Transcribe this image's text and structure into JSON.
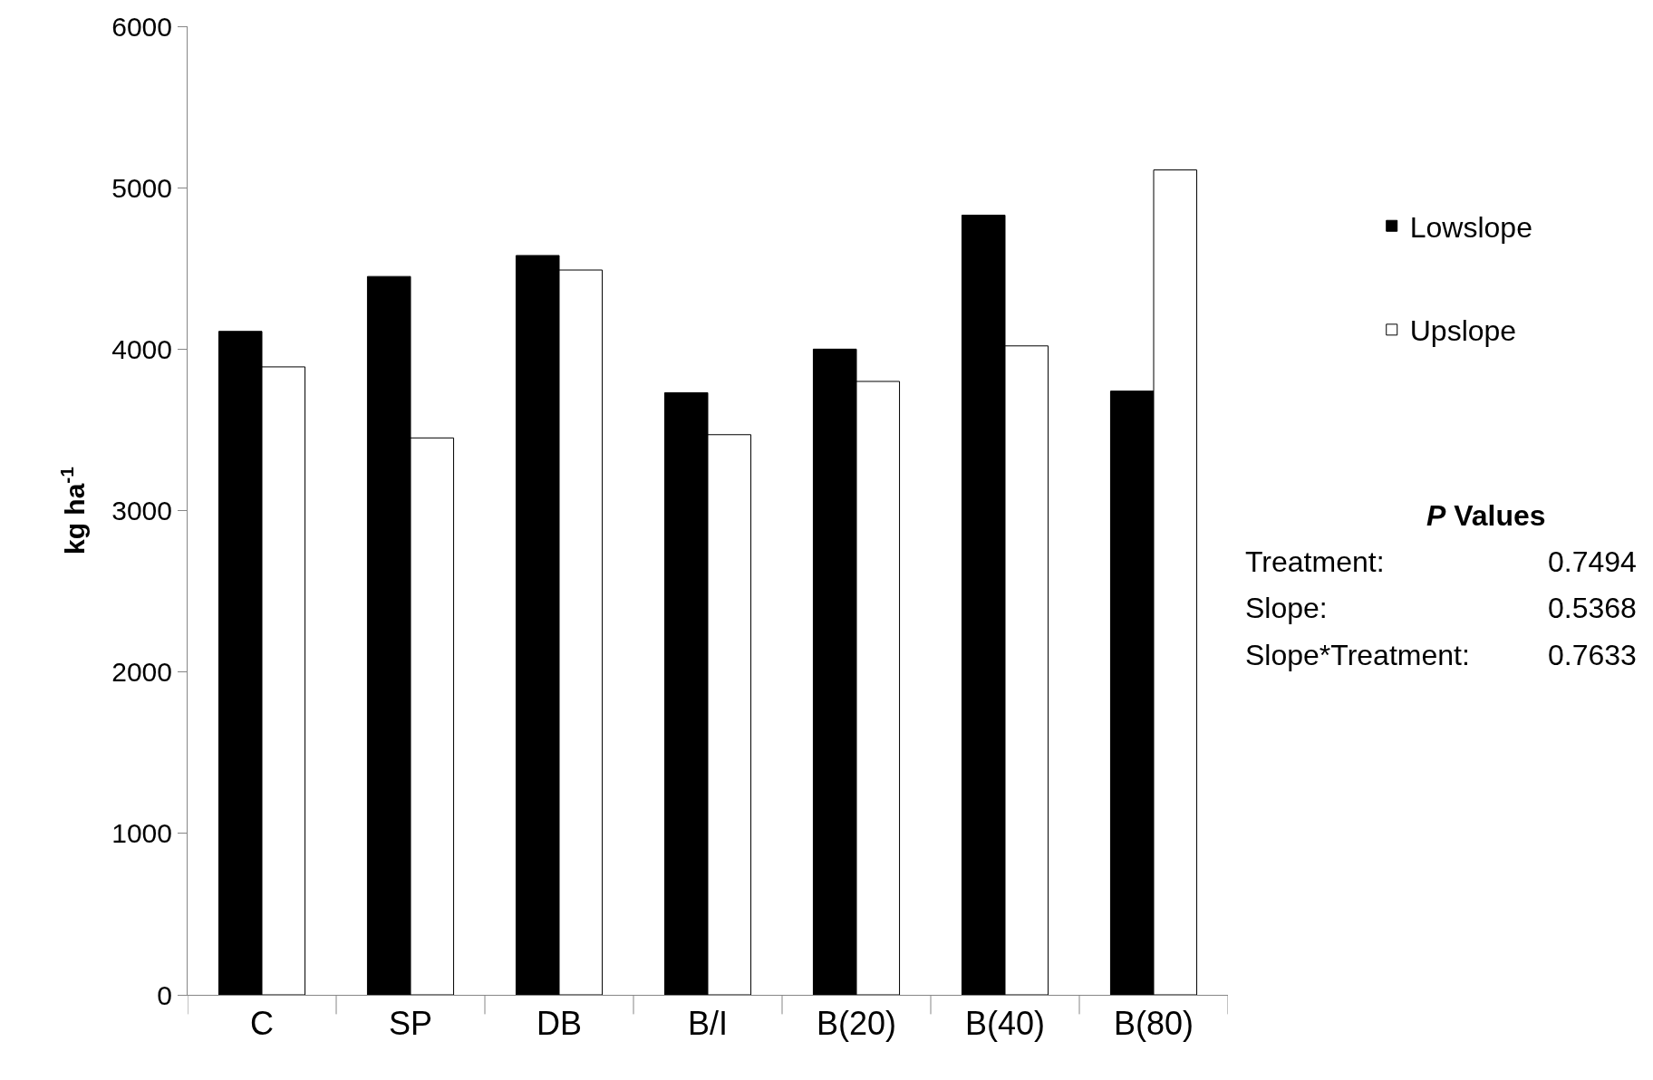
{
  "chart_data": {
    "type": "bar",
    "ylabel": "kg ha$^{-1}$",
    "categories": [
      "C",
      "SP",
      "DB",
      "B/I",
      "B(20)",
      "B(40)",
      "B(80)"
    ],
    "series": [
      {
        "name": "Lowslope",
        "color": "#000000",
        "values": [
          4110,
          4450,
          4580,
          3730,
          4000,
          4830,
          3740
        ]
      },
      {
        "name": "Upslope",
        "color": "#ffffff",
        "values": [
          3890,
          3450,
          4490,
          3470,
          3800,
          4020,
          5110
        ]
      }
    ],
    "ylim": [
      0,
      6000
    ],
    "yticks": [
      0,
      1000,
      2000,
      3000,
      4000,
      5000,
      6000
    ],
    "legend": "right",
    "annotations": [
      "P Values",
      "Treatment:",
      "0.7494",
      "Slope:",
      "0.5368",
      "Slope*Treatment:",
      "0.7633"
    ]
  }
}
